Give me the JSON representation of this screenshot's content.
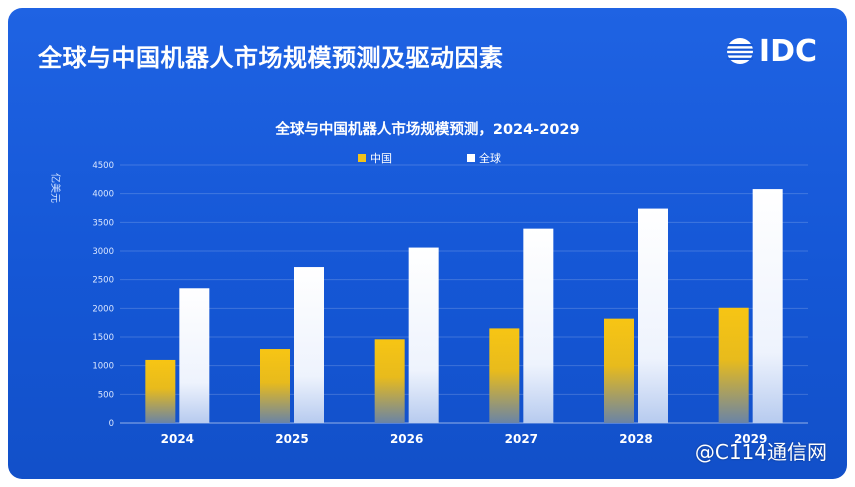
{
  "header": {
    "title": "全球与中国机器人市场规模预测及驱动因素"
  },
  "logo": {
    "text": "IDC"
  },
  "watermark": {
    "text": "@C114通信网"
  },
  "colors": {
    "background": "#1557d6",
    "china_bar": "#f2c21a",
    "global_bar": "#ffffff"
  },
  "chart_data": {
    "type": "bar",
    "title": "全球与中国机器人市场规模预测，2024-2029",
    "ylabel": "亿美元",
    "xlabel": "",
    "categories": [
      "2024",
      "2025",
      "2026",
      "2027",
      "2028",
      "2029"
    ],
    "series": [
      {
        "name": "中国",
        "values": [
          1100,
          1290,
          1460,
          1650,
          1820,
          2010
        ]
      },
      {
        "name": "全球",
        "values": [
          2350,
          2720,
          3060,
          3390,
          3740,
          4080
        ]
      }
    ],
    "ylim": [
      0,
      4500
    ],
    "yticks": [
      "0",
      "500",
      "1000",
      "1500",
      "2000",
      "2500",
      "3000",
      "3500",
      "4000",
      "4500"
    ],
    "grid": true,
    "legend": "top-center"
  }
}
